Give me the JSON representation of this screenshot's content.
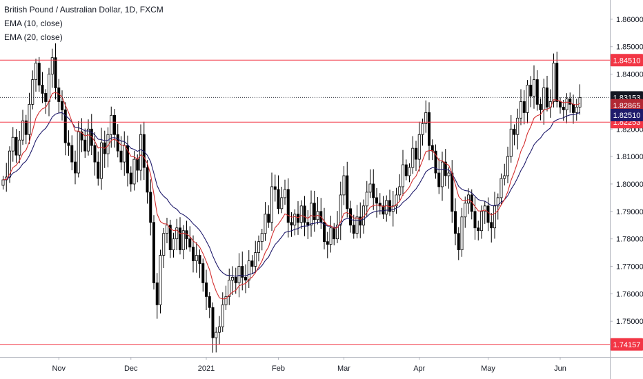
{
  "legend": {
    "title": "British Pound / Australian Dollar, 1D, FXCM",
    "ema10": "EMA (10, close)",
    "ema20": "EMA (20, close)"
  },
  "chart_data": {
    "type": "candlestick",
    "symbol": "GBPAUD",
    "ylim": [
      1.737,
      1.867
    ],
    "y_ticks": [
      "1.86000",
      "1.85000",
      "1.84000",
      "1.83000",
      "1.82000",
      "1.81000",
      "1.80000",
      "1.79000",
      "1.78000",
      "1.77000",
      "1.76000",
      "1.75000"
    ],
    "x_labels": [
      {
        "label": "Nov",
        "index": 17
      },
      {
        "label": "Dec",
        "index": 39
      },
      {
        "label": "2021",
        "index": 62
      },
      {
        "label": "Feb",
        "index": 84
      },
      {
        "label": "Mar",
        "index": 104
      },
      {
        "label": "Apr",
        "index": 127
      },
      {
        "label": "May",
        "index": 148
      },
      {
        "label": "Jun",
        "index": 170
      }
    ],
    "horizontal_lines": [
      {
        "value": 1.8451,
        "label": "1.84510",
        "color": "#f23645"
      },
      {
        "value": 1.82253,
        "label": "1.82253",
        "color": "#f23645"
      },
      {
        "value": 1.74157,
        "label": "1.74157",
        "color": "#f23645"
      }
    ],
    "price_tags": [
      {
        "value": 1.83153,
        "label": "1.83153",
        "color": "#131722",
        "dotted": true
      },
      {
        "value": 1.82865,
        "label": "1.82865",
        "color": "#b22833"
      },
      {
        "value": 1.8251,
        "label": "1.82510",
        "color": "#1f1b6b"
      }
    ],
    "closes": [
      1.8015,
      1.8025,
      1.812,
      1.817,
      1.8105,
      1.816,
      1.823,
      1.818,
      1.829,
      1.838,
      1.844,
      1.836,
      1.833,
      1.83,
      1.84,
      1.846,
      1.835,
      1.83,
      1.827,
      1.815,
      1.814,
      1.808,
      1.804,
      1.819,
      1.816,
      1.812,
      1.82,
      1.814,
      1.808,
      1.802,
      1.815,
      1.811,
      1.818,
      1.825,
      1.818,
      1.812,
      1.808,
      1.814,
      1.804,
      1.8,
      1.809,
      1.805,
      1.818,
      1.806,
      1.797,
      1.786,
      1.764,
      1.756,
      1.774,
      1.782,
      1.785,
      1.776,
      1.78,
      1.784,
      1.776,
      1.783,
      1.78,
      1.777,
      1.772,
      1.774,
      1.771,
      1.764,
      1.759,
      1.755,
      1.744,
      1.746,
      1.748,
      1.756,
      1.759,
      1.765,
      1.766,
      1.764,
      1.77,
      1.766,
      1.765,
      1.772,
      1.77,
      1.775,
      1.779,
      1.782,
      1.789,
      1.786,
      1.799,
      1.798,
      1.791,
      1.795,
      1.798,
      1.786,
      1.785,
      1.789,
      1.786,
      1.792,
      1.786,
      1.785,
      1.793,
      1.787,
      1.79,
      1.786,
      1.779,
      1.778,
      1.784,
      1.78,
      1.785,
      1.796,
      1.803,
      1.791,
      1.785,
      1.782,
      1.788,
      1.785,
      1.792,
      1.797,
      1.8,
      1.795,
      1.793,
      1.792,
      1.789,
      1.794,
      1.79,
      1.792,
      1.796,
      1.799,
      1.807,
      1.803,
      1.806,
      1.813,
      1.809,
      1.818,
      1.822,
      1.826,
      1.814,
      1.812,
      1.804,
      1.799,
      1.808,
      1.803,
      1.804,
      1.79,
      1.782,
      1.776,
      1.788,
      1.793,
      1.796,
      1.79,
      1.784,
      1.783,
      1.79,
      1.792,
      1.786,
      1.784,
      1.792,
      1.795,
      1.802,
      1.803,
      1.81,
      1.82,
      1.818,
      1.824,
      1.83,
      1.826,
      1.836,
      1.832,
      1.838,
      1.829,
      1.827,
      1.835,
      1.828,
      1.83,
      1.844,
      1.83,
      1.828,
      1.827,
      1.831,
      1.829,
      1.826,
      1.828,
      1.8315
    ]
  }
}
